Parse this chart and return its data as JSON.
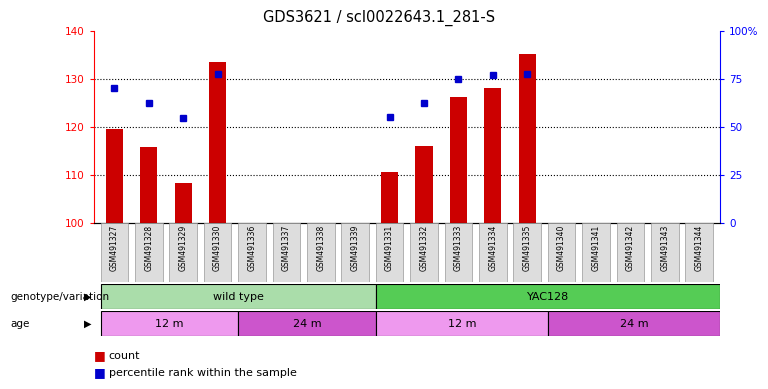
{
  "title": "GDS3621 / scl0022643.1_281-S",
  "samples": [
    "GSM491327",
    "GSM491328",
    "GSM491329",
    "GSM491330",
    "GSM491336",
    "GSM491337",
    "GSM491338",
    "GSM491339",
    "GSM491331",
    "GSM491332",
    "GSM491333",
    "GSM491334",
    "GSM491335",
    "GSM491340",
    "GSM491341",
    "GSM491342",
    "GSM491343",
    "GSM491344"
  ],
  "count_values": [
    119.5,
    115.8,
    108.3,
    133.5,
    null,
    null,
    null,
    null,
    110.5,
    116.0,
    126.2,
    128.0,
    135.2,
    null,
    null,
    null,
    null,
    null
  ],
  "percentile_values": [
    70.0,
    62.5,
    54.5,
    77.5,
    null,
    null,
    null,
    null,
    55.0,
    62.5,
    75.0,
    77.0,
    77.5,
    null,
    null,
    null,
    null,
    null
  ],
  "ylim_left": [
    100,
    140
  ],
  "ylim_right": [
    0,
    100
  ],
  "left_ticks": [
    100,
    110,
    120,
    130,
    140
  ],
  "right_ticks": [
    0,
    25,
    50,
    75,
    100
  ],
  "right_tick_labels": [
    "0",
    "25",
    "50",
    "75",
    "100%"
  ],
  "bar_color": "#cc0000",
  "dot_color": "#0000cc",
  "genotype_wt_color": "#aaddaa",
  "genotype_yac_color": "#55cc55",
  "age_light_color": "#ee99ee",
  "age_dark_color": "#cc55cc",
  "genotype_wt_label": "wild type",
  "genotype_yac_label": "YAC128",
  "genotype_label_prefix": "genotype/variation",
  "age_label_prefix": "age",
  "legend_count": "count",
  "legend_percentile": "percentile rank within the sample",
  "wt_count": 8,
  "yac_count": 10,
  "age_segs": [
    [
      0,
      4,
      "#ee99ee",
      "12 m"
    ],
    [
      4,
      8,
      "#cc55cc",
      "24 m"
    ],
    [
      8,
      13,
      "#ee99ee",
      "12 m"
    ],
    [
      13,
      18,
      "#cc55cc",
      "24 m"
    ]
  ]
}
